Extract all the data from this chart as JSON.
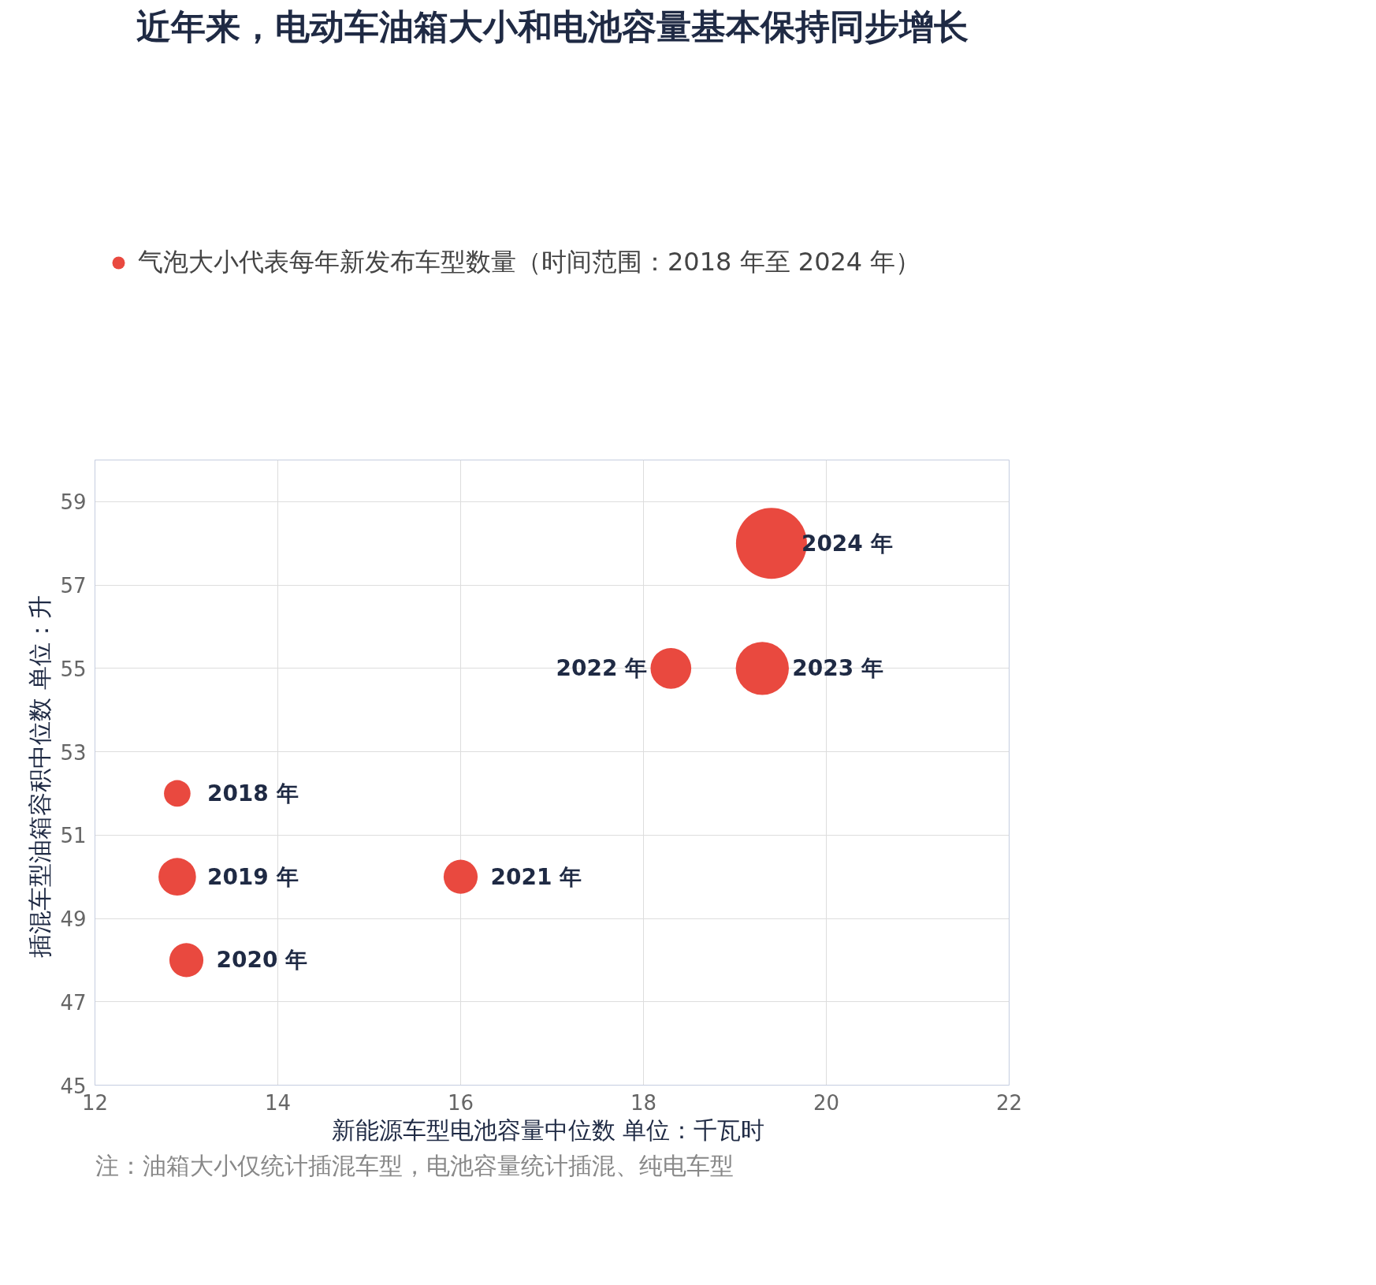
{
  "chart_data": {
    "type": "bubble",
    "title": "近年来，电动车油箱大小和电池容量基本保持同步增长",
    "xlabel": "新能源车型电池容量中位数  单位：千瓦时",
    "ylabel": "插混车型油箱容积中位数  单位：升",
    "x": [
      12.9,
      12.9,
      13.0,
      16.0,
      18.3,
      19.3,
      19.4
    ],
    "series": [
      {
        "name": "气泡大小代表每年新发布车型数量（时间范围：2018 年至 2024 年）",
        "color": "#e9493f",
        "values": [
          52.0,
          50.0,
          48.0,
          50.0,
          55.0,
          55.0,
          58.0
        ],
        "sizes": [
          0.14,
          0.28,
          0.23,
          0.23,
          0.33,
          0.56,
          1
        ]
      }
    ],
    "xlim": [
      12,
      22
    ],
    "xticks": [
      12,
      14,
      16,
      18,
      20,
      22
    ],
    "ylim": [
      45,
      60
    ],
    "yticks": [
      45,
      47,
      49,
      51,
      53,
      55,
      57,
      59
    ],
    "grid": true,
    "legend": "top left",
    "annotations": [
      {
        "text": "2018 年",
        "x": 12.9,
        "y": 52.0
      },
      {
        "text": "2019 年",
        "x": 12.9,
        "y": 50.0
      },
      {
        "text": "2020 年",
        "x": 13.0,
        "y": 48.0
      },
      {
        "text": "2021 年",
        "x": 16.0,
        "y": 50.0
      },
      {
        "text": "2022 年",
        "x": 18.3,
        "y": 55.0
      },
      {
        "text": "2023 年",
        "x": 19.3,
        "y": 55.0
      },
      {
        "text": "2024 年",
        "x": 19.4,
        "y": 58.0
      },
      "注：油箱大小仅统计插混车型，电池容量统计插混、纯电车型"
    ]
  }
}
